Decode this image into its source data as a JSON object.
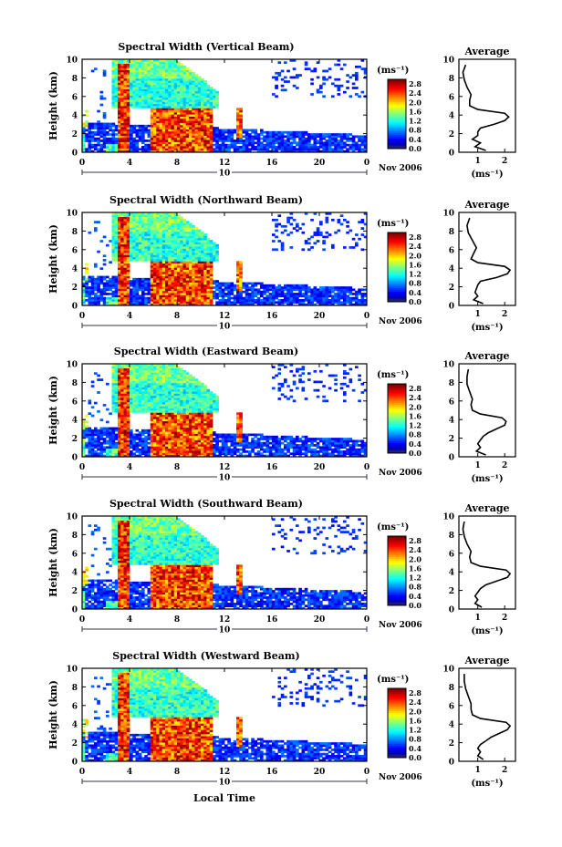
{
  "chart_data": [
    {
      "type": "heatmap",
      "title": "Spectral Width (Vertical Beam)",
      "ylabel": "Height (km)",
      "ylim": [
        0,
        10
      ],
      "yticks": [
        0,
        2,
        4,
        6,
        8,
        10
      ],
      "xticks": [
        "0",
        "4",
        "8",
        "12",
        "16",
        "20",
        "0"
      ],
      "date_marker": "10",
      "date_label": "Nov 2006",
      "colorbar": {
        "unit": "(ms⁻¹)",
        "ticks": [
          "0.0",
          "0.4",
          "0.8",
          "1.2",
          "1.6",
          "2.0",
          "2.4",
          "2.8"
        ],
        "range": [
          0,
          3.0
        ]
      },
      "profile": {
        "title": "Average",
        "xlabel": "(ms⁻¹)",
        "xticks": [
          "1",
          "2"
        ],
        "xlim": [
          0.3,
          2.4
        ],
        "heights": [
          0.2,
          0.6,
          1.0,
          1.4,
          1.8,
          2.2,
          2.6,
          3.0,
          3.4,
          3.8,
          4.2,
          4.6,
          5.0,
          5.6,
          6.2,
          7.0,
          7.8,
          8.6,
          9.4
        ],
        "values": [
          1.3,
          0.9,
          1.1,
          0.8,
          1.0,
          1.0,
          1.1,
          1.6,
          2.0,
          2.15,
          2.0,
          1.0,
          0.7,
          0.7,
          0.75,
          0.6,
          0.5,
          0.45,
          0.55
        ]
      }
    },
    {
      "type": "heatmap",
      "title": "Spectral Width (Northward Beam)",
      "ylabel": "Height (km)",
      "ylim": [
        0,
        10
      ],
      "yticks": [
        0,
        2,
        4,
        6,
        8,
        10
      ],
      "xticks": [
        "0",
        "4",
        "8",
        "12",
        "16",
        "20",
        "0"
      ],
      "date_marker": "10",
      "date_label": "Nov 2006",
      "colorbar": {
        "unit": "(ms⁻¹)",
        "ticks": [
          "0.0",
          "0.4",
          "0.8",
          "1.2",
          "1.6",
          "2.0",
          "2.4",
          "2.8"
        ],
        "range": [
          0,
          3.0
        ]
      },
      "profile": {
        "title": "Average",
        "xlabel": "(ms⁻¹)",
        "xticks": [
          "1",
          "2"
        ],
        "xlim": [
          0.3,
          2.4
        ],
        "heights": [
          0.2,
          0.6,
          1.0,
          1.4,
          1.8,
          2.2,
          2.6,
          3.0,
          3.4,
          3.8,
          4.2,
          4.6,
          5.0,
          5.6,
          6.2,
          7.0,
          7.8,
          8.6,
          9.4
        ],
        "values": [
          1.2,
          0.85,
          1.0,
          0.9,
          0.95,
          1.0,
          1.1,
          1.7,
          2.1,
          2.2,
          2.0,
          1.0,
          0.75,
          0.85,
          0.95,
          0.8,
          0.65,
          0.6,
          0.7
        ]
      }
    },
    {
      "type": "heatmap",
      "title": "Spectral Width (Eastward Beam)",
      "ylabel": "Height (km)",
      "ylim": [
        0,
        10
      ],
      "yticks": [
        0,
        2,
        4,
        6,
        8,
        10
      ],
      "xticks": [
        "0",
        "4",
        "8",
        "12",
        "16",
        "20",
        "0"
      ],
      "date_marker": "10",
      "date_label": "Nov 2006",
      "colorbar": {
        "unit": "(ms⁻¹)",
        "ticks": [
          "0.0",
          "0.4",
          "0.8",
          "1.2",
          "1.6",
          "2.0",
          "2.4",
          "2.8"
        ],
        "range": [
          0,
          3.0
        ]
      },
      "profile": {
        "title": "Average",
        "xlabel": "(ms⁻¹)",
        "xticks": [
          "1",
          "2"
        ],
        "xlim": [
          0.3,
          2.4
        ],
        "heights": [
          0.2,
          0.6,
          1.0,
          1.4,
          1.8,
          2.2,
          2.6,
          3.0,
          3.4,
          3.8,
          4.2,
          4.6,
          5.0,
          5.6,
          6.2,
          7.0,
          7.8,
          8.6,
          9.4
        ],
        "values": [
          1.3,
          0.95,
          1.1,
          1.0,
          1.1,
          1.2,
          1.4,
          1.7,
          2.0,
          2.05,
          1.9,
          1.1,
          0.8,
          0.75,
          0.8,
          0.7,
          0.6,
          0.6,
          0.65
        ]
      }
    },
    {
      "type": "heatmap",
      "title": "Spectral Width (Southward Beam)",
      "ylabel": "Height (km)",
      "ylim": [
        0,
        10
      ],
      "yticks": [
        0,
        2,
        4,
        6,
        8,
        10
      ],
      "xticks": [
        "0",
        "4",
        "8",
        "12",
        "16",
        "20",
        "0"
      ],
      "date_marker": "10",
      "date_label": "Nov 2006",
      "colorbar": {
        "unit": "(ms⁻¹)",
        "ticks": [
          "0.0",
          "0.4",
          "0.8",
          "1.2",
          "1.6",
          "2.0",
          "2.4",
          "2.8"
        ],
        "range": [
          0,
          3.0
        ]
      },
      "profile": {
        "title": "Average",
        "xlabel": "(ms⁻¹)",
        "xticks": [
          "1",
          "2"
        ],
        "xlim": [
          0.3,
          2.4
        ],
        "heights": [
          0.2,
          0.6,
          1.0,
          1.4,
          1.8,
          2.2,
          2.6,
          3.0,
          3.4,
          3.8,
          4.2,
          4.6,
          5.0,
          5.6,
          6.2,
          7.0,
          7.8,
          8.6,
          9.4
        ],
        "values": [
          1.15,
          0.9,
          1.0,
          0.9,
          1.0,
          1.1,
          1.3,
          1.7,
          2.1,
          2.2,
          2.05,
          1.1,
          0.75,
          0.7,
          0.75,
          0.6,
          0.5,
          0.45,
          0.5
        ]
      }
    },
    {
      "type": "heatmap",
      "title": "Spectral Width (Westward Beam)",
      "ylabel": "Height (km)",
      "ylim": [
        0,
        10
      ],
      "yticks": [
        0,
        2,
        4,
        6,
        8,
        10
      ],
      "xticks": [
        "0",
        "4",
        "8",
        "12",
        "16",
        "20",
        "0"
      ],
      "date_marker": "10",
      "date_label": "Nov 2006",
      "colorbar": {
        "unit": "(ms⁻¹)",
        "ticks": [
          "0.0",
          "0.4",
          "0.8",
          "1.2",
          "1.6",
          "2.0",
          "2.4",
          "2.8"
        ],
        "range": [
          0,
          3.0
        ]
      },
      "profile": {
        "title": "Average",
        "xlabel": "(ms⁻¹)",
        "xticks": [
          "1",
          "2"
        ],
        "xlim": [
          0.3,
          2.4
        ],
        "heights": [
          0.2,
          0.6,
          1.0,
          1.4,
          1.8,
          2.2,
          2.6,
          3.0,
          3.4,
          3.8,
          4.2,
          4.6,
          5.0,
          5.6,
          6.2,
          7.0,
          7.8,
          8.6,
          9.4
        ],
        "values": [
          1.2,
          1.0,
          1.1,
          1.0,
          1.1,
          1.3,
          1.5,
          1.8,
          2.1,
          2.2,
          2.05,
          1.1,
          0.8,
          0.75,
          0.75,
          0.65,
          0.55,
          0.5,
          0.5
        ]
      }
    }
  ],
  "xlabel": "Local Time"
}
